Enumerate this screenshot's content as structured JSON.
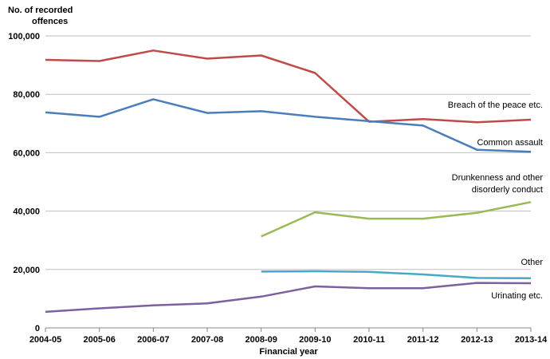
{
  "chart_data": {
    "type": "line",
    "ylabel_lines": [
      "No. of recorded",
      "offences"
    ],
    "xlabel": "Financial year",
    "categories": [
      "2004-05",
      "2005-06",
      "2006-07",
      "2007-08",
      "2008-09",
      "2009-10",
      "2010-11",
      "2011-12",
      "2012-13",
      "2013-14"
    ],
    "ylim": [
      0,
      100000
    ],
    "yticks": [
      0,
      20000,
      40000,
      60000,
      80000,
      100000
    ],
    "ytick_labels": [
      "0",
      "20,000",
      "40,000",
      "60,000",
      "80,000",
      "100,000"
    ],
    "grid": true,
    "series": [
      {
        "name": "Breach of the peace etc.",
        "label_lines": [
          "Breach of the peace etc."
        ],
        "color": "#be4b48",
        "values": [
          91800,
          91400,
          95000,
          92200,
          93300,
          87300,
          70600,
          71500,
          70400,
          71300
        ]
      },
      {
        "name": "Common assault",
        "label_lines": [
          "Common assault"
        ],
        "color": "#4a7ebb",
        "values": [
          73800,
          72300,
          78300,
          73600,
          74200,
          72300,
          70800,
          69300,
          61000,
          60300
        ]
      },
      {
        "name": "Drunkenness and other disorderly conduct",
        "label_lines": [
          "Drunkenness and other",
          "disorderly conduct"
        ],
        "color": "#98b954",
        "values": [
          null,
          null,
          null,
          null,
          31300,
          39600,
          37400,
          37400,
          39400,
          43100
        ]
      },
      {
        "name": "Other",
        "label_lines": [
          "Other"
        ],
        "color": "#46aac5",
        "values": [
          null,
          null,
          null,
          null,
          19300,
          19400,
          19200,
          18300,
          17100,
          17000
        ]
      },
      {
        "name": "Urinating etc.",
        "label_lines": [
          "Urinating etc."
        ],
        "color": "#7d60a0",
        "values": [
          5500,
          6700,
          7700,
          8400,
          10700,
          14200,
          13600,
          13600,
          15400,
          15300
        ]
      }
    ]
  }
}
